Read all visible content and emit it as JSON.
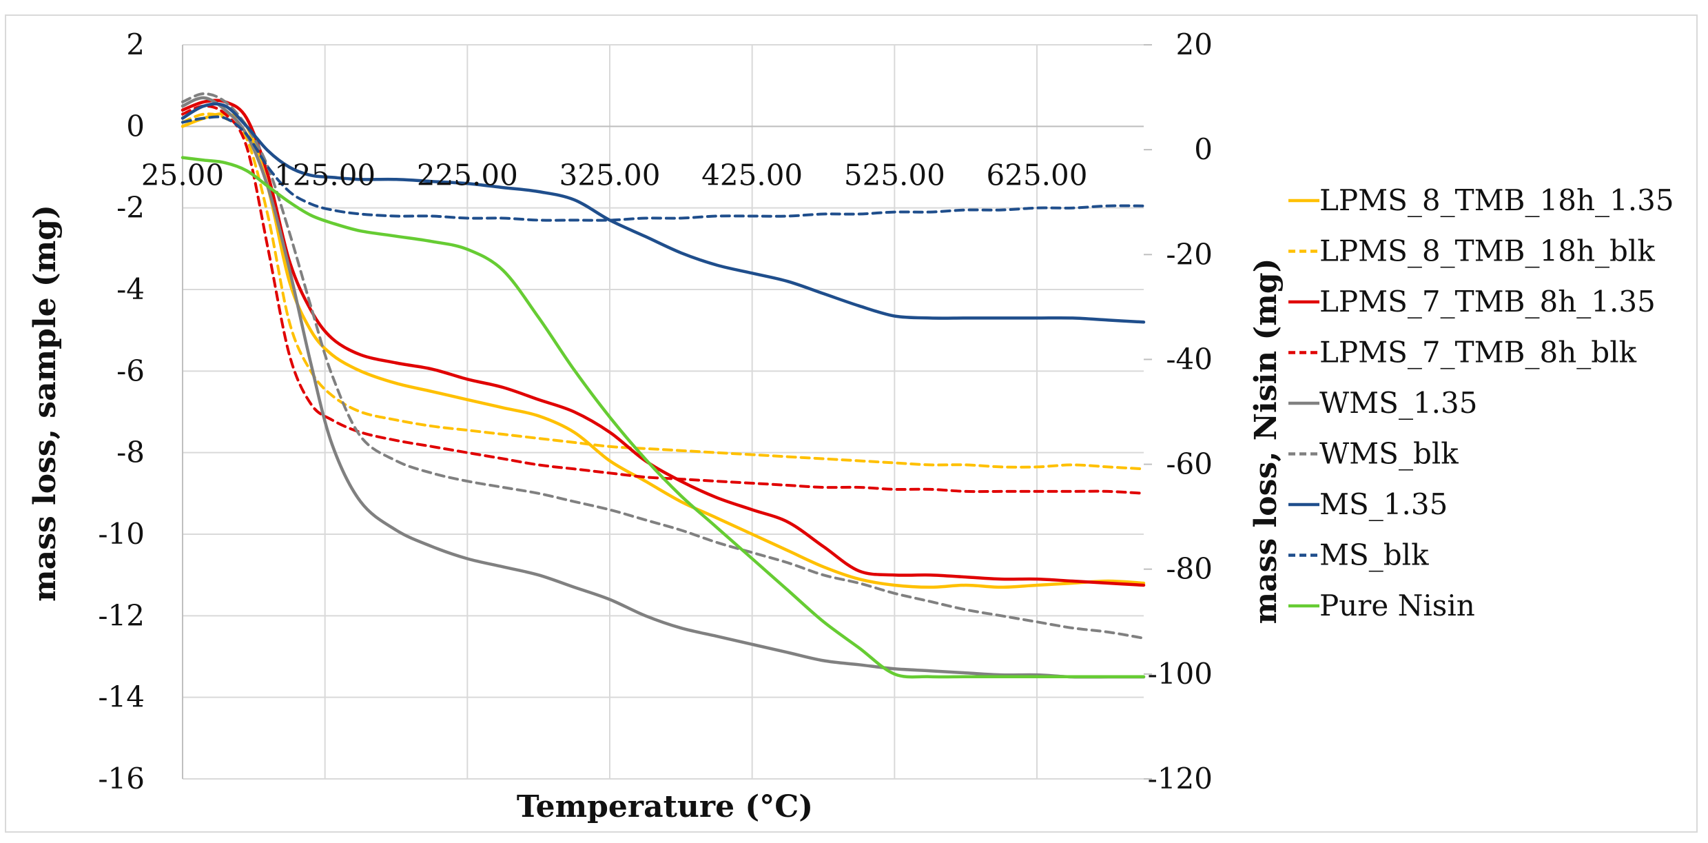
{
  "chart_data": {
    "type": "line",
    "xlabel": "Temperature (°C)",
    "ylabel_left": "mass loss, sample (mg)",
    "ylabel_right": "mass loss, Nisin (mg)",
    "xlim": [
      25,
      700
    ],
    "ylim_left": [
      -16,
      2
    ],
    "ylim_right": [
      -120,
      20
    ],
    "x_ticks": [
      25,
      125,
      225,
      325,
      425,
      525,
      625
    ],
    "x_tick_labels": [
      "25.00",
      "125.00",
      "225.00",
      "325.00",
      "425.00",
      "525.00",
      "625.00"
    ],
    "y_ticks_left": [
      2,
      0,
      -2,
      -4,
      -6,
      -8,
      -10,
      -12,
      -14,
      -16
    ],
    "y_ticks_right": [
      20,
      0,
      -20,
      -40,
      -60,
      -80,
      -100,
      -120
    ],
    "grid": true,
    "legend_position": "right",
    "series": [
      {
        "name": "LPMS_8_TMB_18h_1.35",
        "color": "#ffc000",
        "dash": false,
        "axis": "left",
        "x": [
          25,
          40,
          55,
          70,
          85,
          100,
          115,
          130,
          150,
          175,
          200,
          225,
          250,
          275,
          300,
          325,
          350,
          375,
          400,
          425,
          450,
          475,
          500,
          525,
          550,
          575,
          600,
          625,
          650,
          675,
          700
        ],
        "y": [
          0.0,
          0.2,
          0.3,
          0.0,
          -1.5,
          -3.8,
          -5.0,
          -5.6,
          -6.0,
          -6.3,
          -6.5,
          -6.7,
          -6.9,
          -7.1,
          -7.5,
          -8.2,
          -8.7,
          -9.2,
          -9.6,
          -10.0,
          -10.4,
          -10.8,
          -11.1,
          -11.25,
          -11.3,
          -11.25,
          -11.3,
          -11.25,
          -11.2,
          -11.15,
          -11.2
        ]
      },
      {
        "name": "LPMS_8_TMB_18h_blk",
        "color": "#ffc000",
        "dash": true,
        "axis": "left",
        "x": [
          25,
          40,
          55,
          70,
          85,
          100,
          115,
          130,
          150,
          175,
          200,
          225,
          250,
          275,
          300,
          325,
          350,
          375,
          400,
          425,
          450,
          475,
          500,
          525,
          550,
          575,
          600,
          625,
          650,
          675,
          700
        ],
        "y": [
          0.1,
          0.3,
          0.2,
          -0.3,
          -2.2,
          -4.8,
          -6.0,
          -6.6,
          -7.0,
          -7.2,
          -7.35,
          -7.45,
          -7.55,
          -7.65,
          -7.75,
          -7.85,
          -7.9,
          -7.95,
          -8.0,
          -8.05,
          -8.1,
          -8.15,
          -8.2,
          -8.25,
          -8.3,
          -8.3,
          -8.35,
          -8.35,
          -8.3,
          -8.35,
          -8.4
        ]
      },
      {
        "name": "LPMS_7_TMB_8h_1.35",
        "color": "#e00000",
        "dash": false,
        "axis": "left",
        "x": [
          25,
          40,
          55,
          70,
          85,
          100,
          115,
          130,
          150,
          175,
          200,
          225,
          250,
          275,
          300,
          325,
          350,
          375,
          400,
          425,
          450,
          475,
          500,
          525,
          550,
          575,
          600,
          625,
          650,
          675,
          700
        ],
        "y": [
          0.4,
          0.6,
          0.6,
          0.2,
          -1.2,
          -3.3,
          -4.5,
          -5.2,
          -5.6,
          -5.8,
          -5.95,
          -6.2,
          -6.4,
          -6.7,
          -7.0,
          -7.5,
          -8.2,
          -8.7,
          -9.1,
          -9.4,
          -9.7,
          -10.3,
          -10.9,
          -11.0,
          -11.0,
          -11.05,
          -11.1,
          -11.1,
          -11.15,
          -11.2,
          -11.25
        ]
      },
      {
        "name": "LPMS_7_TMB_8h_blk",
        "color": "#e00000",
        "dash": true,
        "axis": "left",
        "x": [
          25,
          40,
          55,
          70,
          85,
          100,
          115,
          130,
          150,
          175,
          200,
          225,
          250,
          275,
          300,
          325,
          350,
          375,
          400,
          425,
          450,
          475,
          500,
          525,
          550,
          575,
          600,
          625,
          650,
          675,
          700
        ],
        "y": [
          0.3,
          0.5,
          0.3,
          -0.5,
          -3.0,
          -5.6,
          -6.8,
          -7.2,
          -7.5,
          -7.7,
          -7.85,
          -8.0,
          -8.15,
          -8.3,
          -8.4,
          -8.5,
          -8.6,
          -8.65,
          -8.7,
          -8.75,
          -8.8,
          -8.85,
          -8.85,
          -8.9,
          -8.9,
          -8.95,
          -8.95,
          -8.95,
          -8.95,
          -8.95,
          -9.0
        ]
      },
      {
        "name": "WMS_1.35",
        "color": "#808080",
        "dash": false,
        "axis": "left",
        "x": [
          25,
          40,
          55,
          70,
          85,
          100,
          115,
          130,
          150,
          175,
          200,
          225,
          250,
          275,
          300,
          325,
          350,
          375,
          400,
          425,
          450,
          475,
          500,
          525,
          550,
          575,
          600,
          625,
          650,
          675,
          700
        ],
        "y": [
          0.5,
          0.7,
          0.4,
          -0.2,
          -1.5,
          -3.5,
          -5.8,
          -7.8,
          -9.2,
          -9.9,
          -10.3,
          -10.6,
          -10.8,
          -11.0,
          -11.3,
          -11.6,
          -12.0,
          -12.3,
          -12.5,
          -12.7,
          -12.9,
          -13.1,
          -13.2,
          -13.3,
          -13.35,
          -13.4,
          -13.45,
          -13.45,
          -13.5,
          -13.5,
          -13.5
        ]
      },
      {
        "name": "WMS_blk",
        "color": "#808080",
        "dash": true,
        "axis": "left",
        "x": [
          25,
          40,
          55,
          70,
          85,
          100,
          115,
          130,
          150,
          175,
          200,
          225,
          250,
          275,
          300,
          325,
          350,
          375,
          400,
          425,
          450,
          475,
          500,
          525,
          550,
          575,
          600,
          625,
          650,
          675,
          700
        ],
        "y": [
          0.6,
          0.8,
          0.6,
          0.0,
          -1.0,
          -2.6,
          -4.4,
          -6.1,
          -7.6,
          -8.2,
          -8.5,
          -8.7,
          -8.85,
          -9.0,
          -9.2,
          -9.4,
          -9.65,
          -9.9,
          -10.2,
          -10.45,
          -10.7,
          -11.0,
          -11.2,
          -11.45,
          -11.65,
          -11.85,
          -12.0,
          -12.15,
          -12.3,
          -12.4,
          -12.55
        ]
      },
      {
        "name": "MS_1.35",
        "color": "#1f4e8c",
        "dash": false,
        "axis": "left",
        "x": [
          25,
          40,
          55,
          70,
          85,
          100,
          115,
          130,
          150,
          175,
          200,
          225,
          250,
          275,
          300,
          325,
          350,
          375,
          400,
          425,
          450,
          475,
          500,
          525,
          550,
          575,
          600,
          625,
          650,
          675,
          700
        ],
        "y": [
          0.2,
          0.5,
          0.5,
          0.0,
          -0.6,
          -1.0,
          -1.2,
          -1.25,
          -1.3,
          -1.3,
          -1.35,
          -1.4,
          -1.5,
          -1.6,
          -1.8,
          -2.3,
          -2.7,
          -3.1,
          -3.4,
          -3.6,
          -3.8,
          -4.1,
          -4.4,
          -4.65,
          -4.7,
          -4.7,
          -4.7,
          -4.7,
          -4.7,
          -4.75,
          -4.8
        ]
      },
      {
        "name": "MS_blk",
        "color": "#1f4e8c",
        "dash": true,
        "axis": "left",
        "x": [
          25,
          40,
          55,
          70,
          85,
          100,
          115,
          130,
          150,
          175,
          200,
          225,
          250,
          275,
          300,
          325,
          350,
          375,
          400,
          425,
          450,
          475,
          500,
          525,
          550,
          575,
          600,
          625,
          650,
          675,
          700
        ],
        "y": [
          0.1,
          0.2,
          0.2,
          -0.2,
          -1.0,
          -1.6,
          -1.9,
          -2.05,
          -2.15,
          -2.2,
          -2.2,
          -2.25,
          -2.25,
          -2.3,
          -2.3,
          -2.3,
          -2.25,
          -2.25,
          -2.2,
          -2.2,
          -2.2,
          -2.15,
          -2.15,
          -2.1,
          -2.1,
          -2.05,
          -2.05,
          -2.0,
          -2.0,
          -1.95,
          -1.95
        ]
      },
      {
        "name": "Pure Nisin",
        "color": "#66cc33",
        "dash": false,
        "axis": "right",
        "x": [
          25,
          40,
          55,
          70,
          85,
          100,
          115,
          130,
          150,
          175,
          200,
          225,
          250,
          275,
          300,
          325,
          350,
          375,
          400,
          425,
          450,
          475,
          500,
          525,
          550,
          575,
          600,
          625,
          650,
          675,
          700
        ],
        "y": [
          -1.5,
          -2.0,
          -2.5,
          -4.0,
          -7.0,
          -10.0,
          -12.5,
          -14.0,
          -15.5,
          -16.5,
          -17.5,
          -19.0,
          -23.0,
          -32.0,
          -42.0,
          -51.0,
          -59.0,
          -66.0,
          -72.0,
          -78.0,
          -84.0,
          -90.0,
          -95.0,
          -100.0,
          -100.5,
          -100.5,
          -100.5,
          -100.5,
          -100.5,
          -100.5,
          -100.5
        ]
      }
    ]
  }
}
